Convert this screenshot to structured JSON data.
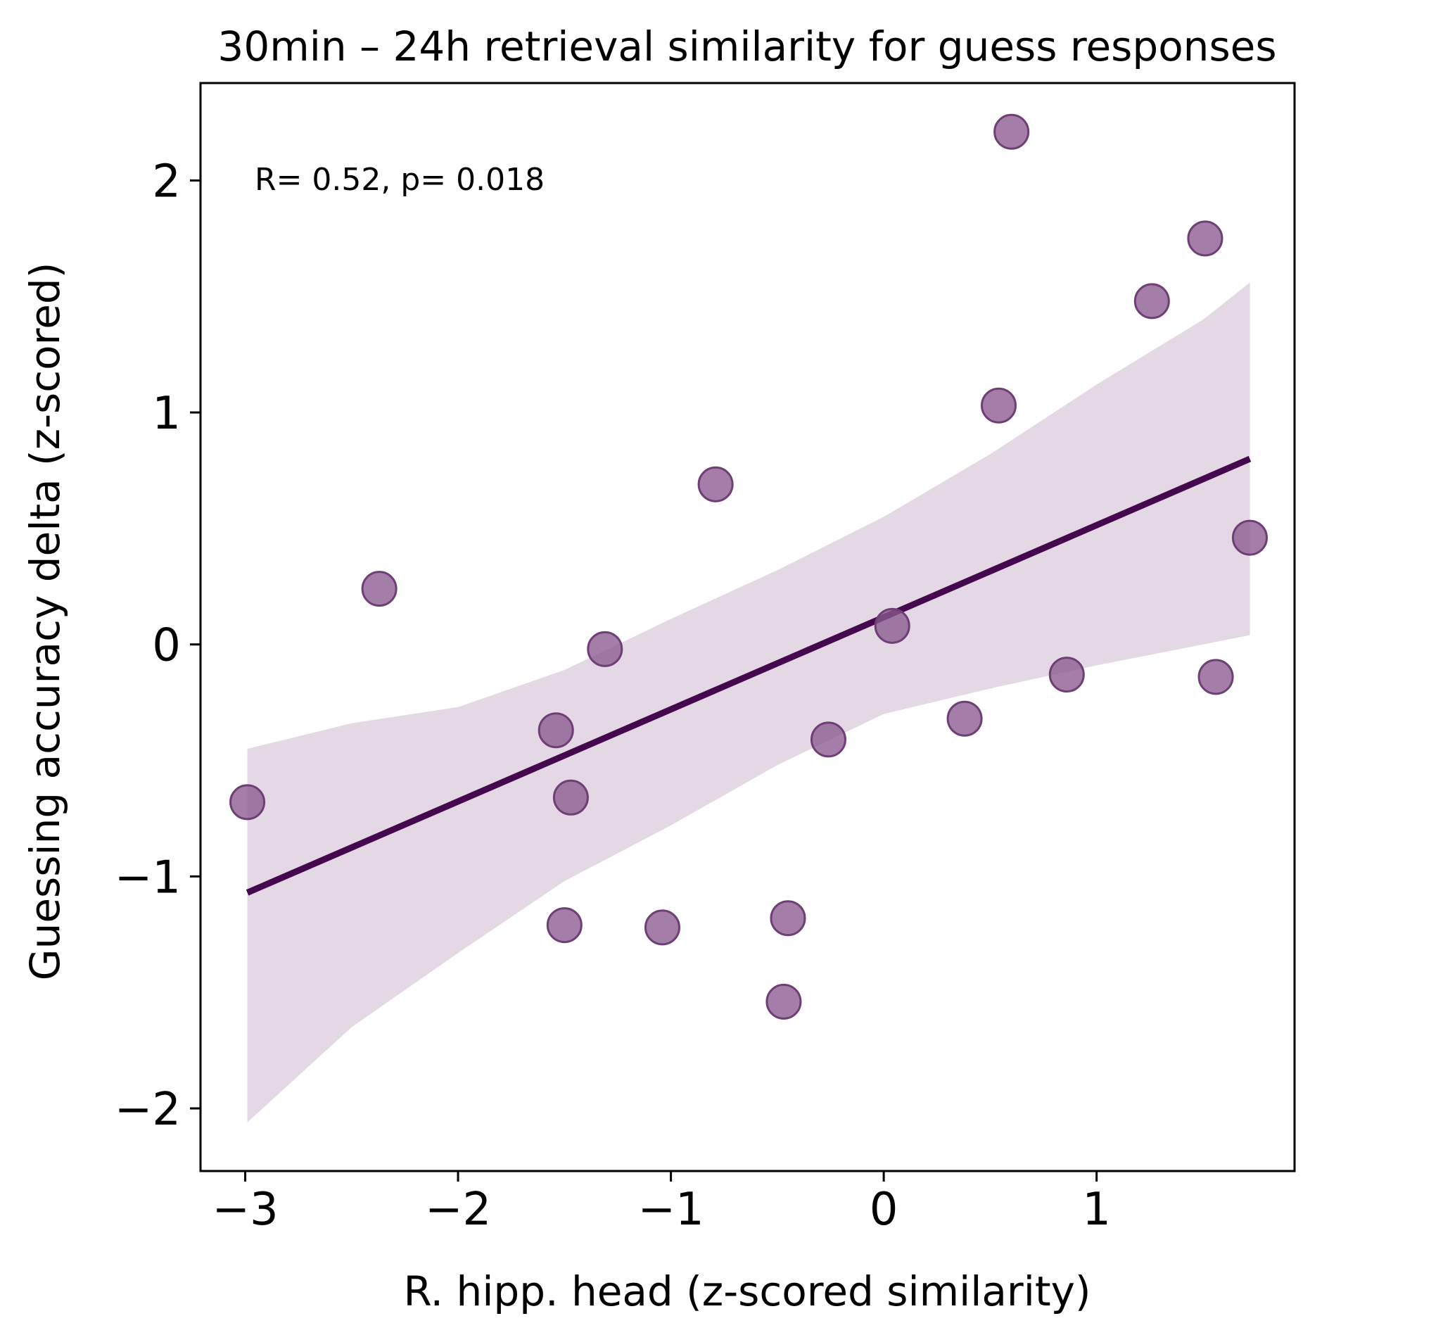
{
  "chart_data": {
    "type": "scatter",
    "title": "30min – 24h retrieval similarity for guess responses",
    "xlabel": "R. hipp. head (z-scored similarity)",
    "ylabel": "Guessing accuracy delta (z-scored)",
    "xlim": [
      -3.21,
      1.93
    ],
    "ylim": [
      -2.27,
      2.42
    ],
    "xticks": [
      -3,
      -2,
      -1,
      0,
      1
    ],
    "xtick_labels": [
      "−3",
      "−2",
      "−1",
      "0",
      "1"
    ],
    "yticks": [
      -2,
      -1,
      0,
      1,
      2
    ],
    "ytick_labels": [
      "−2",
      "−1",
      "0",
      "1",
      "2"
    ],
    "grid": false,
    "legend": "none",
    "annotation": "R= 0.52, p= 0.018",
    "colors": {
      "points": "#8b5a8f",
      "point_edge": "#6e3f74",
      "line": "#45084f",
      "band": "#e3d8e4"
    },
    "points": [
      {
        "x": -2.99,
        "y": -0.68
      },
      {
        "x": -2.37,
        "y": 0.24
      },
      {
        "x": -1.54,
        "y": -0.37
      },
      {
        "x": -1.5,
        "y": -1.21
      },
      {
        "x": -1.47,
        "y": -0.66
      },
      {
        "x": -1.31,
        "y": -0.02
      },
      {
        "x": -1.04,
        "y": -1.22
      },
      {
        "x": -0.79,
        "y": 0.69
      },
      {
        "x": -0.45,
        "y": -1.18
      },
      {
        "x": -0.47,
        "y": -1.54
      },
      {
        "x": -0.26,
        "y": -0.41
      },
      {
        "x": 0.04,
        "y": 0.08
      },
      {
        "x": 0.38,
        "y": -0.32
      },
      {
        "x": 0.54,
        "y": 1.03
      },
      {
        "x": 0.6,
        "y": 2.21
      },
      {
        "x": 0.86,
        "y": -0.13
      },
      {
        "x": 1.26,
        "y": 1.48
      },
      {
        "x": 1.51,
        "y": 1.75
      },
      {
        "x": 1.56,
        "y": -0.14
      },
      {
        "x": 1.72,
        "y": 0.46
      }
    ],
    "regression_line": {
      "x": [
        -2.99,
        1.72
      ],
      "y": [
        -1.07,
        0.8
      ]
    },
    "confidence_band": {
      "x": [
        -2.99,
        -2.5,
        -2.0,
        -1.5,
        -1.0,
        -0.5,
        0.0,
        0.5,
        1.0,
        1.5,
        1.72
      ],
      "lower": [
        -2.06,
        -1.65,
        -1.33,
        -1.02,
        -0.78,
        -0.52,
        -0.3,
        -0.19,
        -0.09,
        0.0,
        0.04
      ],
      "upper": [
        -0.45,
        -0.34,
        -0.27,
        -0.11,
        0.11,
        0.32,
        0.55,
        0.82,
        1.12,
        1.4,
        1.56
      ]
    }
  }
}
